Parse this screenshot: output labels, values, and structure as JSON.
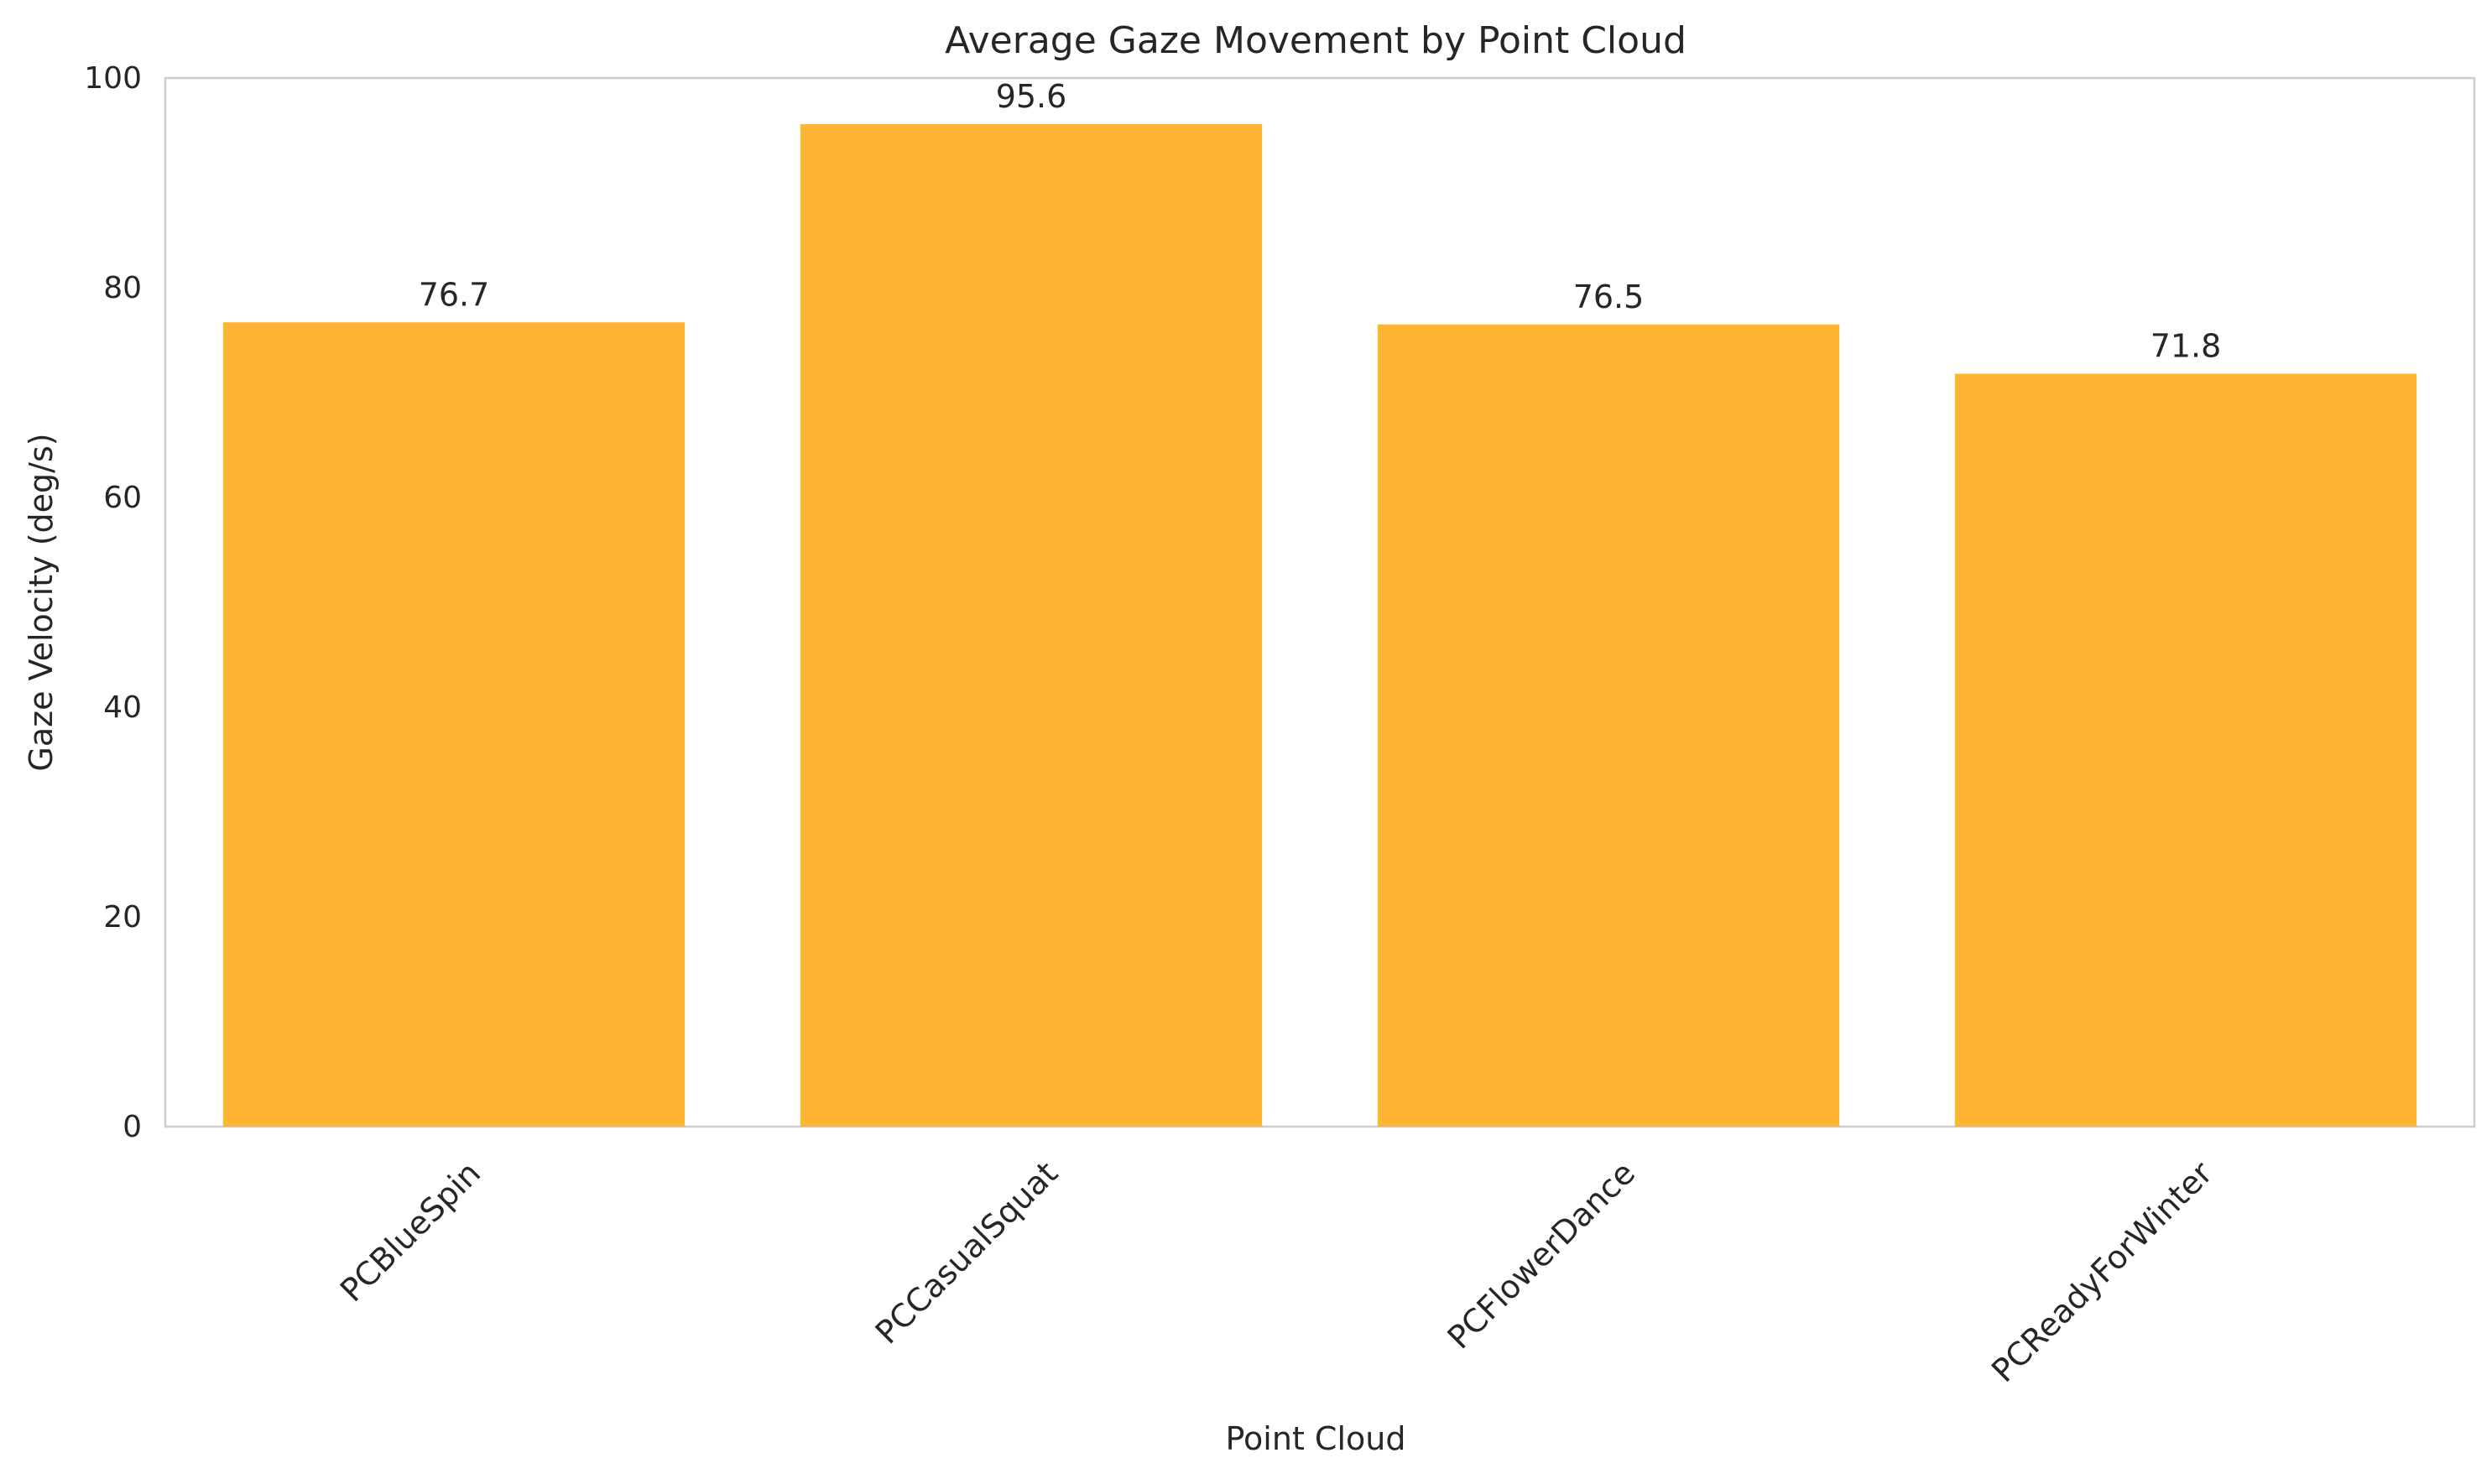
{
  "chart_data": {
    "type": "bar",
    "title": "Average Gaze Movement by Point Cloud",
    "xlabel": "Point Cloud",
    "ylabel": "Gaze Velocity (deg/s)",
    "categories": [
      "PCBlueSpin",
      "PCCasualSquat",
      "PCFlowerDance",
      "PCReadyForWinter"
    ],
    "values": [
      76.7,
      95.6,
      76.5,
      71.8
    ],
    "data_labels": [
      "76.7",
      "95.6",
      "76.5",
      "71.8"
    ],
    "ylim": [
      0,
      100
    ],
    "yticks": [
      0,
      20,
      40,
      60,
      80,
      100
    ],
    "grid": false,
    "legend": "none",
    "bar_color": "#ffb534",
    "axis_color": "#cccccc",
    "text_color": "#262626"
  }
}
